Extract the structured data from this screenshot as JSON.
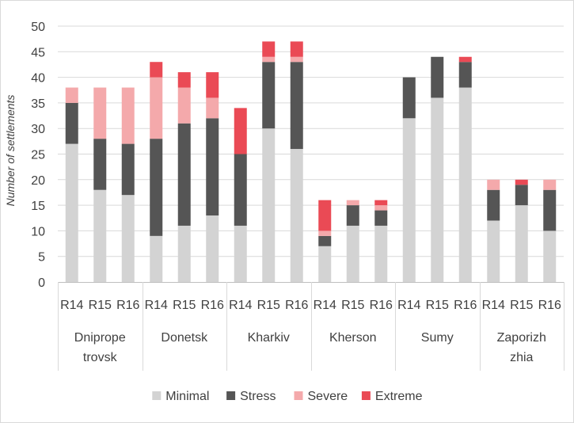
{
  "chart_data": {
    "type": "bar",
    "stacked": true,
    "ylabel": "Number of settlements",
    "ylim": [
      0,
      50
    ],
    "yticks": [
      0,
      5,
      10,
      15,
      20,
      25,
      30,
      35,
      40,
      45,
      50
    ],
    "grid": "horizontal",
    "legend_position": "bottom",
    "groups": [
      {
        "name_lines": [
          "Dniprope",
          "trovsk"
        ],
        "categories": [
          "R14",
          "R15",
          "R16"
        ]
      },
      {
        "name_lines": [
          "Donetsk"
        ],
        "categories": [
          "R14",
          "R15",
          "R16"
        ]
      },
      {
        "name_lines": [
          "Kharkiv"
        ],
        "categories": [
          "R14",
          "R15",
          "R16"
        ]
      },
      {
        "name_lines": [
          "Kherson"
        ],
        "categories": [
          "R14",
          "R15",
          "R16"
        ]
      },
      {
        "name_lines": [
          "Sumy"
        ],
        "categories": [
          "R14",
          "R15",
          "R16"
        ]
      },
      {
        "name_lines": [
          "Zaporizh",
          "zhia"
        ],
        "categories": [
          "R14",
          "R15",
          "R16"
        ]
      }
    ],
    "series": [
      {
        "name": "Minimal",
        "color": "#d3d3d3",
        "values": [
          27,
          18,
          17,
          9,
          11,
          13,
          11,
          30,
          26,
          7,
          11,
          11,
          32,
          36,
          38,
          12,
          15,
          10
        ]
      },
      {
        "name": "Stress",
        "color": "#555555",
        "values": [
          8,
          10,
          10,
          19,
          20,
          19,
          14,
          13,
          17,
          2,
          4,
          3,
          8,
          8,
          5,
          6,
          4,
          8
        ]
      },
      {
        "name": "Severe",
        "color": "#f4a9ab",
        "values": [
          3,
          10,
          11,
          12,
          7,
          4,
          0,
          1,
          1,
          1,
          1,
          1,
          0,
          0,
          0,
          2,
          0,
          2
        ]
      },
      {
        "name": "Extreme",
        "color": "#ea4a55",
        "values": [
          0,
          0,
          0,
          3,
          3,
          5,
          9,
          3,
          3,
          6,
          0,
          1,
          0,
          0,
          1,
          0,
          1,
          0
        ]
      }
    ]
  }
}
